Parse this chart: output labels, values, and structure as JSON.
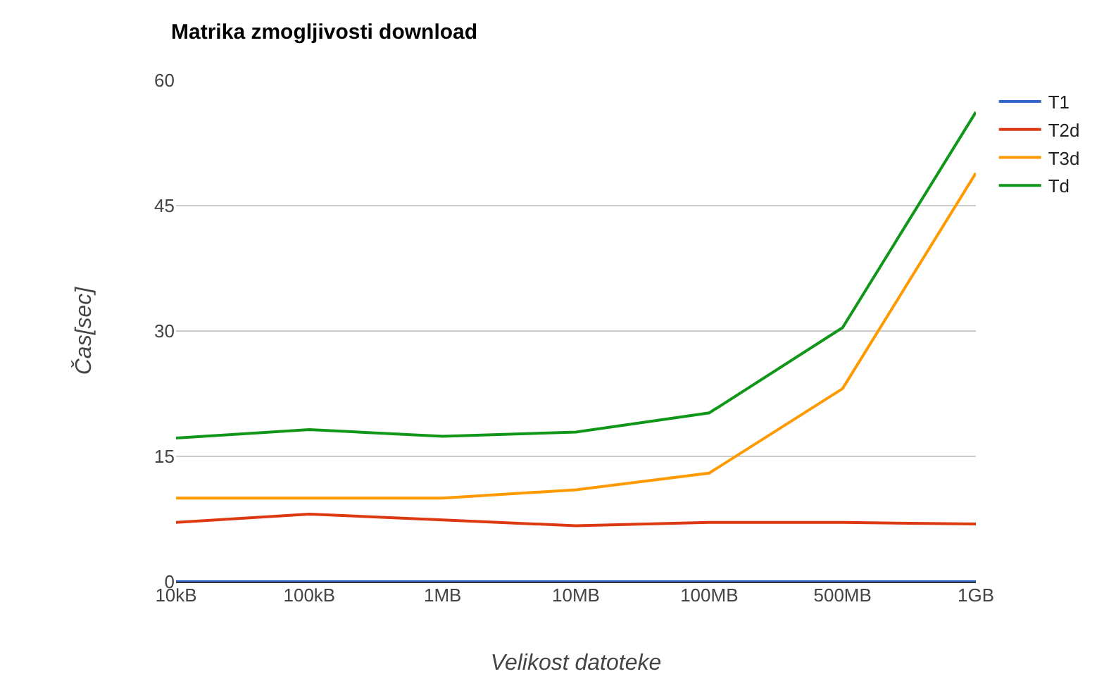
{
  "chart_data": {
    "type": "line",
    "title": "Matrika zmogljivosti download",
    "xlabel": "Velikost datoteke",
    "ylabel": "Čas[sec]",
    "categories": [
      "10kB",
      "100kB",
      "1MB",
      "10MB",
      "100MB",
      "500MB",
      "1GB"
    ],
    "series": [
      {
        "name": "T1",
        "color": "#3366cc",
        "values": [
          0,
          0,
          0,
          0,
          0,
          0,
          0
        ]
      },
      {
        "name": "T2d",
        "color": "#dc3912",
        "values": [
          7.1,
          8.1,
          7.4,
          6.7,
          7.1,
          7.1,
          6.9
        ]
      },
      {
        "name": "T3d",
        "color": "#ff9900",
        "values": [
          10,
          10,
          10,
          11,
          13,
          23.1,
          48.9
        ]
      },
      {
        "name": "Td",
        "color": "#109618",
        "values": [
          17.2,
          18.2,
          17.4,
          17.9,
          20.2,
          30.4,
          56.2
        ]
      }
    ],
    "ylim": [
      0,
      60
    ],
    "yticks": [
      0,
      15,
      30,
      45,
      60
    ],
    "grid": "y",
    "legend": "top right",
    "marker": "none",
    "line_style": "solid"
  }
}
